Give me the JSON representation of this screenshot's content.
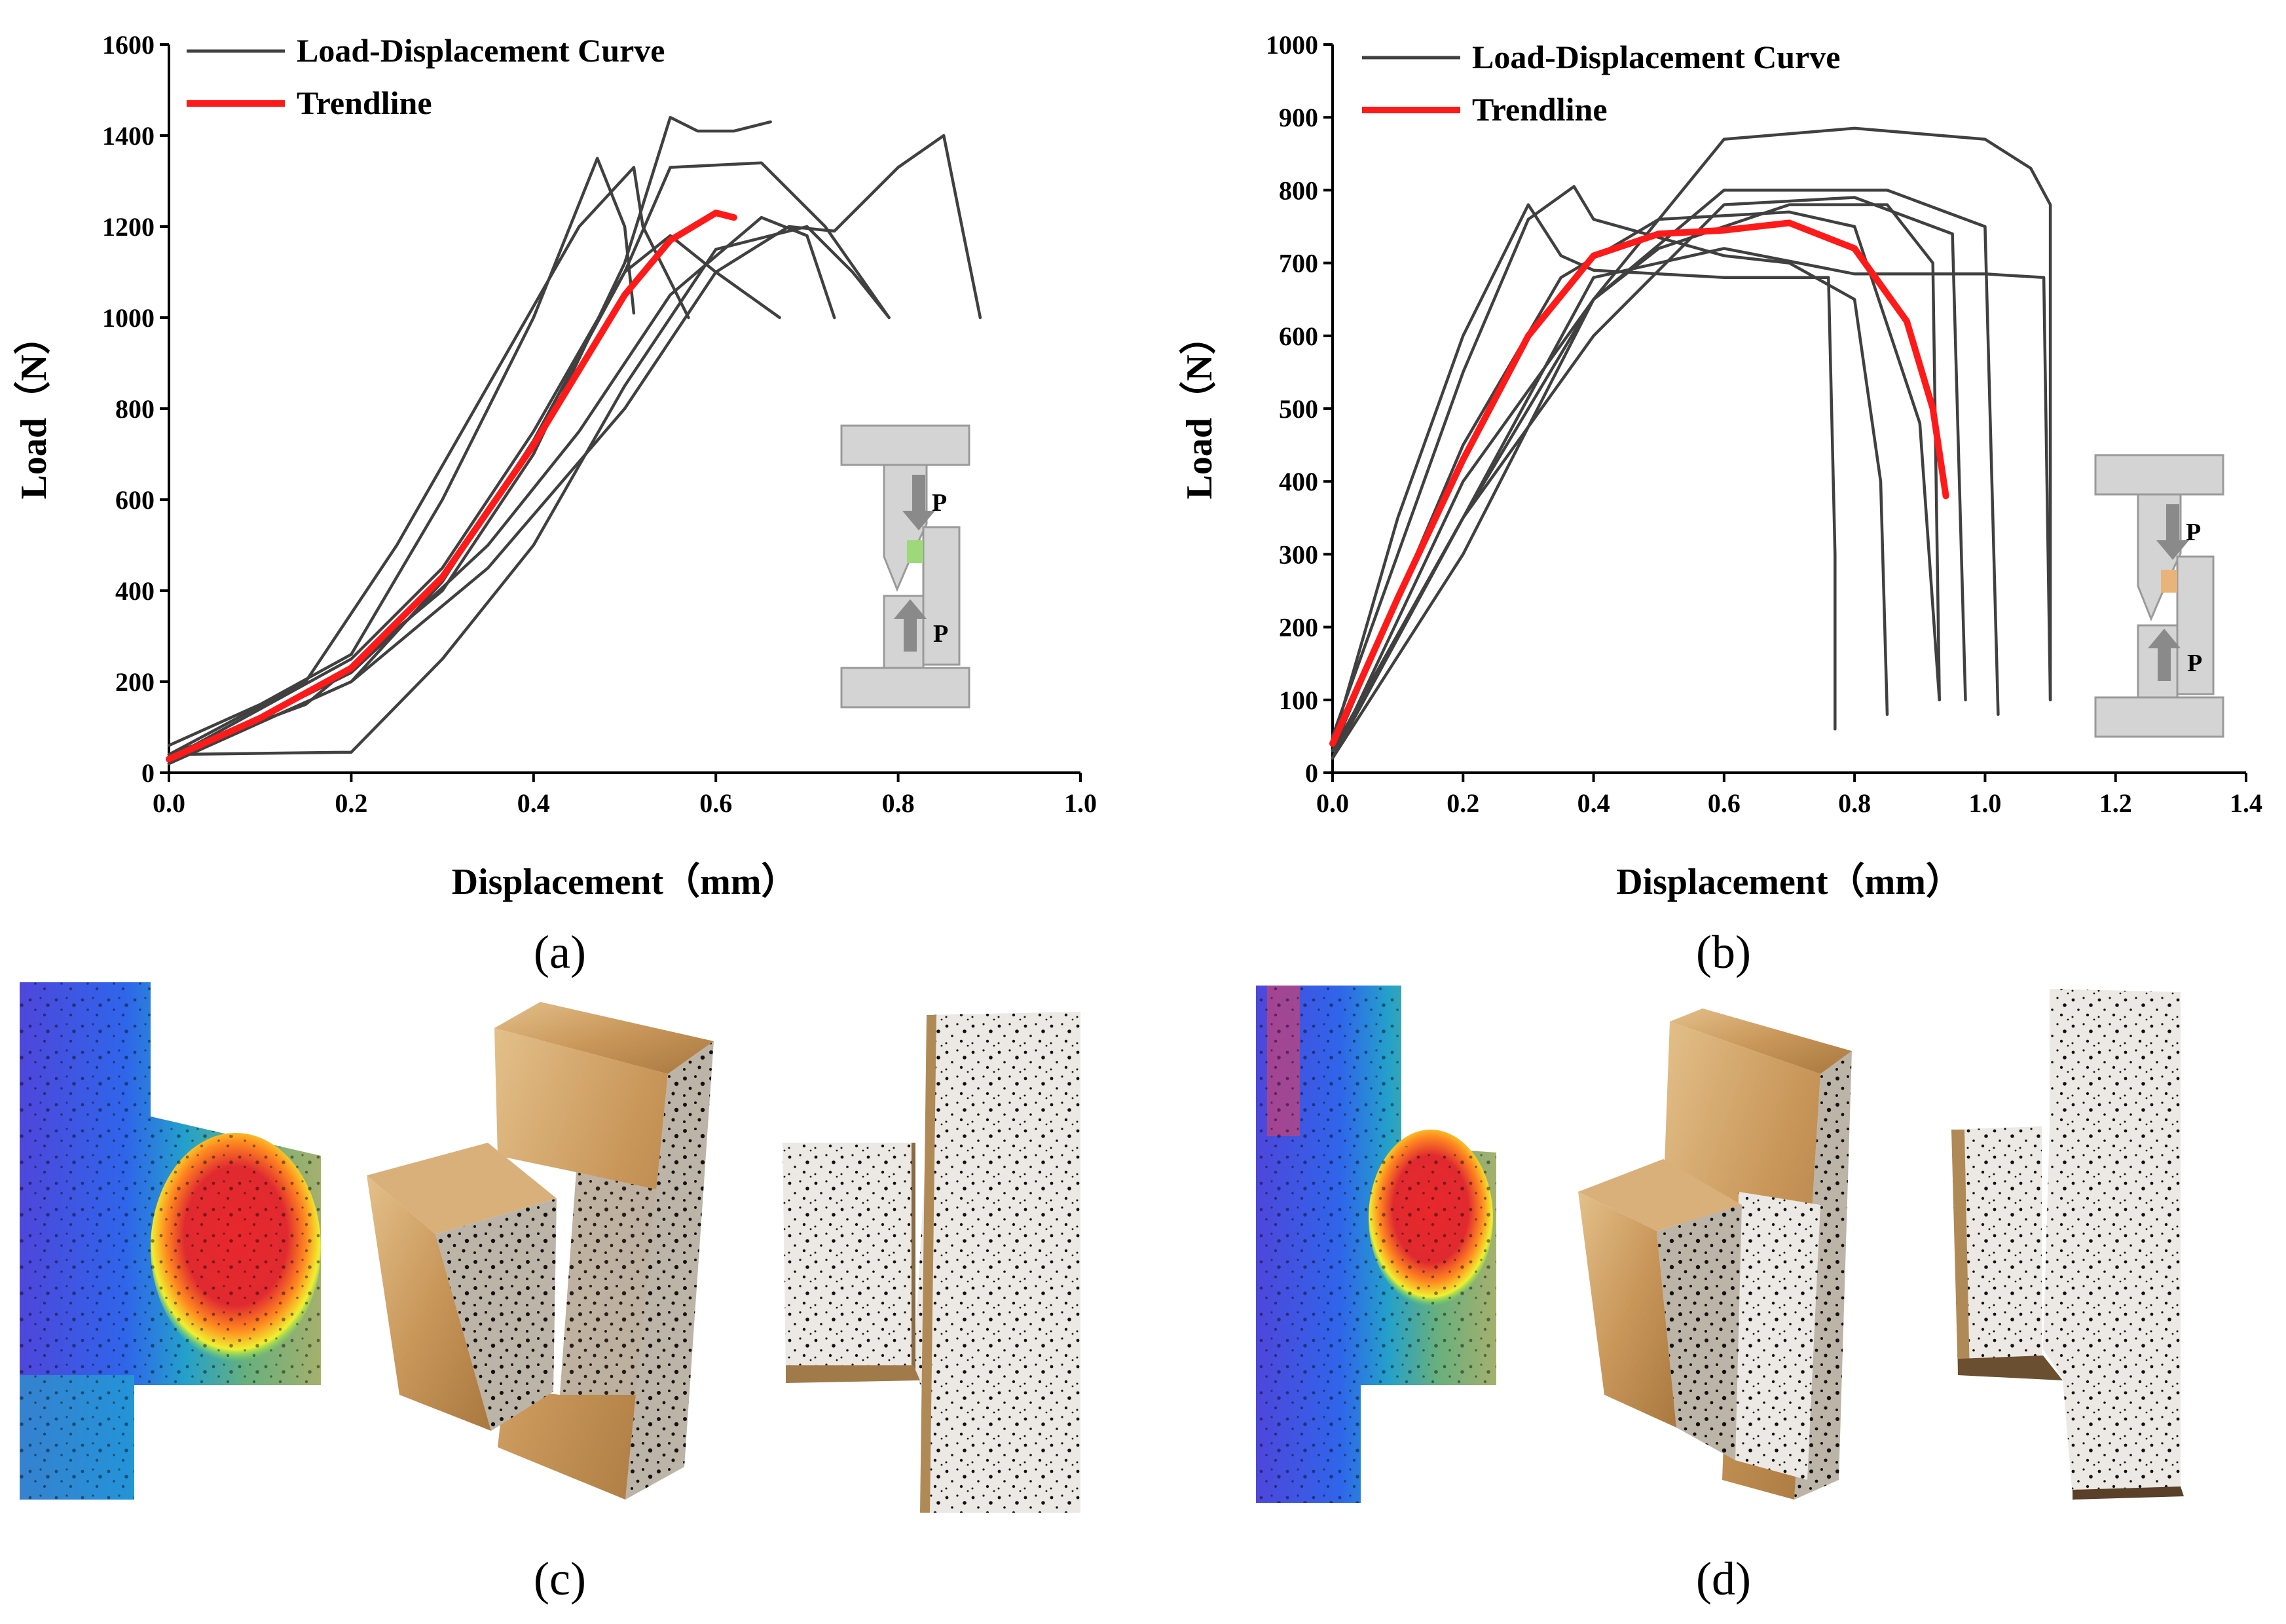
{
  "chart_data": [
    {
      "type": "line",
      "panel_label": "(a)",
      "xlabel": "Displacement（mm）",
      "ylabel": "Load（N）",
      "xlim": [
        0,
        1.0
      ],
      "ylim": [
        0,
        1600
      ],
      "xticks": [
        "0.0",
        "0.2",
        "0.4",
        "0.6",
        "0.8",
        "1.0"
      ],
      "yticks": [
        "0",
        "200",
        "400",
        "600",
        "800",
        "1000",
        "1200",
        "1400",
        "1600"
      ],
      "legend": [
        {
          "label": "Load-Displacement Curve",
          "color": "#404040"
        },
        {
          "label": "Trendline",
          "color": "#ff1a1a"
        }
      ],
      "legend_position": "top-left",
      "inset_labels": [
        "P",
        "P"
      ],
      "series": [
        {
          "role": "curve",
          "points": [
            [
              0,
              60
            ],
            [
              0.1,
              150
            ],
            [
              0.2,
              260
            ],
            [
              0.3,
              600
            ],
            [
              0.4,
              1000
            ],
            [
              0.47,
              1350
            ],
            [
              0.5,
              1200
            ],
            [
              0.51,
              1010
            ]
          ]
        },
        {
          "role": "curve",
          "points": [
            [
              0,
              40
            ],
            [
              0.15,
              200
            ],
            [
              0.25,
              500
            ],
            [
              0.35,
              850
            ],
            [
              0.45,
              1200
            ],
            [
              0.51,
              1330
            ],
            [
              0.52,
              1200
            ],
            [
              0.57,
              1000
            ]
          ]
        },
        {
          "role": "curve",
          "points": [
            [
              0,
              40
            ],
            [
              0.15,
              150
            ],
            [
              0.3,
              400
            ],
            [
              0.4,
              700
            ],
            [
              0.5,
              1120
            ],
            [
              0.55,
              1440
            ],
            [
              0.58,
              1410
            ],
            [
              0.62,
              1410
            ],
            [
              0.66,
              1430
            ]
          ]
        },
        {
          "role": "curve",
          "points": [
            [
              0,
              30
            ],
            [
              0.2,
              250
            ],
            [
              0.3,
              450
            ],
            [
              0.4,
              750
            ],
            [
              0.5,
              1100
            ],
            [
              0.55,
              1330
            ],
            [
              0.65,
              1340
            ],
            [
              0.72,
              1200
            ],
            [
              0.79,
              1000
            ]
          ]
        },
        {
          "role": "curve",
          "points": [
            [
              0,
              40
            ],
            [
              0.2,
              45
            ],
            [
              0.3,
              250
            ],
            [
              0.4,
              500
            ],
            [
              0.5,
              850
            ],
            [
              0.6,
              1150
            ],
            [
              0.7,
              1200
            ],
            [
              0.75,
              1100
            ],
            [
              0.79,
              1000
            ]
          ]
        },
        {
          "role": "curve",
          "points": [
            [
              0,
              20
            ],
            [
              0.2,
              220
            ],
            [
              0.35,
              500
            ],
            [
              0.45,
              750
            ],
            [
              0.55,
              1050
            ],
            [
              0.65,
              1220
            ],
            [
              0.7,
              1180
            ],
            [
              0.73,
              1000
            ]
          ]
        },
        {
          "role": "curve",
          "points": [
            [
              0,
              20
            ],
            [
              0.2,
              200
            ],
            [
              0.35,
              450
            ],
            [
              0.5,
              800
            ],
            [
              0.6,
              1100
            ],
            [
              0.68,
              1200
            ],
            [
              0.73,
              1190
            ],
            [
              0.8,
              1330
            ],
            [
              0.85,
              1400
            ],
            [
              0.87,
              1200
            ],
            [
              0.89,
              1000
            ]
          ]
        },
        {
          "role": "curve",
          "points": [
            [
              0,
              20
            ],
            [
              0.2,
              200
            ],
            [
              0.3,
              420
            ],
            [
              0.4,
              730
            ],
            [
              0.5,
              1100
            ],
            [
              0.55,
              1180
            ],
            [
              0.6,
              1100
            ],
            [
              0.67,
              1000
            ]
          ]
        },
        {
          "role": "trendline",
          "points": [
            [
              0,
              30
            ],
            [
              0.1,
              120
            ],
            [
              0.2,
              230
            ],
            [
              0.3,
              430
            ],
            [
              0.4,
              720
            ],
            [
              0.5,
              1050
            ],
            [
              0.55,
              1170
            ],
            [
              0.6,
              1230
            ],
            [
              0.62,
              1220
            ]
          ]
        }
      ]
    },
    {
      "type": "line",
      "panel_label": "(b)",
      "xlabel": "Displacement（mm）",
      "ylabel": "Load（N）",
      "xlim": [
        0,
        1.4
      ],
      "ylim": [
        0,
        1000
      ],
      "xticks": [
        "0.0",
        "0.2",
        "0.4",
        "0.6",
        "0.8",
        "1.0",
        "1.2",
        "1.4"
      ],
      "yticks": [
        "0",
        "100",
        "200",
        "300",
        "400",
        "500",
        "600",
        "700",
        "800",
        "900",
        "1000"
      ],
      "legend": [
        {
          "label": "Load-Displacement Curve",
          "color": "#404040"
        },
        {
          "label": "Trendline",
          "color": "#ff1a1a"
        }
      ],
      "legend_position": "top-left",
      "inset_labels": [
        "P",
        "P"
      ],
      "series": [
        {
          "role": "curve",
          "points": [
            [
              0,
              40
            ],
            [
              0.1,
              350
            ],
            [
              0.2,
              600
            ],
            [
              0.3,
              780
            ],
            [
              0.35,
              710
            ],
            [
              0.4,
              690
            ],
            [
              0.6,
              680
            ],
            [
              0.76,
              680
            ],
            [
              0.77,
              300
            ],
            [
              0.77,
              60
            ]
          ]
        },
        {
          "role": "curve",
          "points": [
            [
              0,
              50
            ],
            [
              0.1,
              300
            ],
            [
              0.2,
              550
            ],
            [
              0.3,
              760
            ],
            [
              0.37,
              805
            ],
            [
              0.4,
              760
            ],
            [
              0.6,
              710
            ],
            [
              0.7,
              700
            ],
            [
              0.8,
              650
            ],
            [
              0.84,
              400
            ],
            [
              0.85,
              80
            ]
          ]
        },
        {
          "role": "curve",
          "points": [
            [
              0,
              30
            ],
            [
              0.2,
              450
            ],
            [
              0.35,
              680
            ],
            [
              0.5,
              760
            ],
            [
              0.7,
              770
            ],
            [
              0.8,
              750
            ],
            [
              0.9,
              480
            ],
            [
              0.93,
              100
            ]
          ]
        },
        {
          "role": "curve",
          "points": [
            [
              0,
              20
            ],
            [
              0.2,
              400
            ],
            [
              0.4,
              650
            ],
            [
              0.5,
              720
            ],
            [
              0.7,
              780
            ],
            [
              0.85,
              780
            ],
            [
              0.92,
              700
            ],
            [
              0.93,
              100
            ]
          ]
        },
        {
          "role": "curve",
          "points": [
            [
              0,
              30
            ],
            [
              0.2,
              350
            ],
            [
              0.4,
              600
            ],
            [
              0.6,
              780
            ],
            [
              0.8,
              790
            ],
            [
              0.95,
              740
            ],
            [
              0.97,
              100
            ]
          ]
        },
        {
          "role": "curve",
          "points": [
            [
              0,
              30
            ],
            [
              0.2,
              350
            ],
            [
              0.4,
              650
            ],
            [
              0.6,
              800
            ],
            [
              0.85,
              800
            ],
            [
              1.0,
              750
            ],
            [
              1.02,
              80
            ]
          ]
        },
        {
          "role": "curve",
          "points": [
            [
              0,
              20
            ],
            [
              0.2,
              300
            ],
            [
              0.4,
              650
            ],
            [
              0.6,
              870
            ],
            [
              0.8,
              885
            ],
            [
              1.0,
              870
            ],
            [
              1.07,
              830
            ],
            [
              1.1,
              780
            ],
            [
              1.1,
              100
            ]
          ]
        },
        {
          "role": "curve",
          "points": [
            [
              0,
              20
            ],
            [
              0.2,
              350
            ],
            [
              0.4,
              680
            ],
            [
              0.6,
              720
            ],
            [
              0.8,
              685
            ],
            [
              1.0,
              685
            ],
            [
              1.09,
              680
            ],
            [
              1.1,
              100
            ]
          ]
        },
        {
          "role": "trendline",
          "points": [
            [
              0,
              40
            ],
            [
              0.1,
              240
            ],
            [
              0.2,
              430
            ],
            [
              0.3,
              600
            ],
            [
              0.4,
              710
            ],
            [
              0.5,
              740
            ],
            [
              0.6,
              745
            ],
            [
              0.7,
              755
            ],
            [
              0.8,
              720
            ],
            [
              0.88,
              620
            ],
            [
              0.92,
              500
            ],
            [
              0.94,
              380
            ]
          ]
        }
      ]
    }
  ],
  "panels": {
    "c_label": "(c)",
    "d_label": "(d)"
  },
  "colors": {
    "curve": "#404040",
    "trend": "#ff1a1a",
    "fixture": "#d4d4d4",
    "fixture_edge": "#9a9a9a",
    "wood": "#c89b5c",
    "speckle": "#ece6e0"
  }
}
